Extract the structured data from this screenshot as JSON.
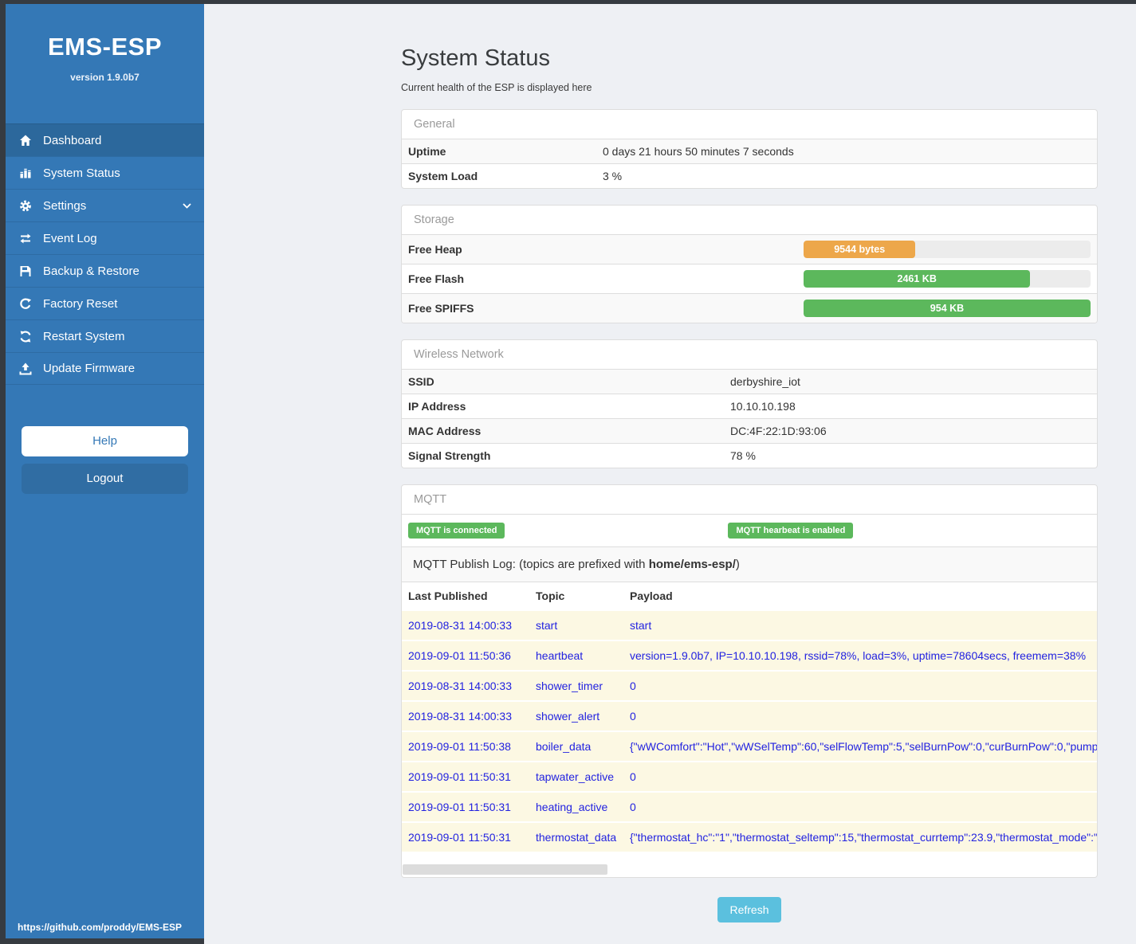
{
  "sidebar": {
    "brand": "EMS-ESP",
    "version": "version 1.9.0b7",
    "items": [
      {
        "label": "Dashboard"
      },
      {
        "label": "System Status"
      },
      {
        "label": "Settings"
      },
      {
        "label": "Event Log"
      },
      {
        "label": "Backup & Restore"
      },
      {
        "label": "Factory Reset"
      },
      {
        "label": "Restart System"
      },
      {
        "label": "Update Firmware"
      }
    ],
    "help_label": "Help",
    "logout_label": "Logout",
    "footer_link": "https://github.com/proddy/EMS-ESP"
  },
  "header": {
    "title": "System Status",
    "subtitle": "Current health of the ESP is displayed here"
  },
  "panels": {
    "general": {
      "title": "General",
      "rows": [
        {
          "label": "Uptime",
          "value": "0 days 21 hours 50 minutes 7 seconds"
        },
        {
          "label": "System Load",
          "value": "3 %"
        }
      ]
    },
    "storage": {
      "title": "Storage",
      "rows": [
        {
          "label": "Free Heap",
          "value": "9544 bytes",
          "percent": 39,
          "color": "#eda74a"
        },
        {
          "label": "Free Flash",
          "value": "2461 KB",
          "percent": 79,
          "color": "#5cb85c"
        },
        {
          "label": "Free SPIFFS",
          "value": "954 KB",
          "percent": 100,
          "color": "#5cb85c"
        }
      ]
    },
    "wireless": {
      "title": "Wireless Network",
      "rows": [
        {
          "label": "SSID",
          "value": "derbyshire_iot"
        },
        {
          "label": "IP Address",
          "value": "10.10.10.198"
        },
        {
          "label": "MAC Address",
          "value": "DC:4F:22:1D:93:06"
        },
        {
          "label": "Signal Strength",
          "value": "78 %"
        }
      ]
    },
    "mqtt": {
      "title": "MQTT",
      "badges": [
        "MQTT is connected",
        "MQTT hearbeat is enabled"
      ],
      "publish_log": {
        "prefix": "MQTT Publish Log: (topics are prefixed with ",
        "bold": "home/ems-esp/",
        "suffix": ")"
      },
      "table": {
        "columns": [
          "Last Published",
          "Topic",
          "Payload"
        ],
        "rows": [
          [
            "2019-08-31 14:00:33",
            "start",
            "start"
          ],
          [
            "2019-09-01 11:50:36",
            "heartbeat",
            "version=1.9.0b7, IP=10.10.10.198, rssid=78%, load=3%, uptime=78604secs, freemem=38%"
          ],
          [
            "2019-08-31 14:00:33",
            "shower_timer",
            "0"
          ],
          [
            "2019-08-31 14:00:33",
            "shower_alert",
            "0"
          ],
          [
            "2019-09-01 11:50:38",
            "boiler_data",
            "{\"wWComfort\":\"Hot\",\"wWSelTemp\":60,\"selFlowTemp\":5,\"selBurnPow\":0,\"curBurnPow\":0,\"pump"
          ],
          [
            "2019-09-01 11:50:31",
            "tapwater_active",
            "0"
          ],
          [
            "2019-09-01 11:50:31",
            "heating_active",
            "0"
          ],
          [
            "2019-09-01 11:50:31",
            "thermostat_data",
            "{\"thermostat_hc\":\"1\",\"thermostat_seltemp\":15,\"thermostat_currtemp\":23.9,\"thermostat_mode\":\""
          ]
        ]
      }
    }
  },
  "refresh_label": "Refresh",
  "colors": {
    "sidebar": "#3478b6",
    "sidebar_active": "#2c689c",
    "frame_dark": "#363b41",
    "badge_green": "#5cb85c",
    "bar_orange": "#eda74a",
    "bar_green": "#5cb85c",
    "refresh_blue": "#5bc0de",
    "log_row_bg": "#fcf8e3",
    "log_text_blue": "#2222e0"
  }
}
